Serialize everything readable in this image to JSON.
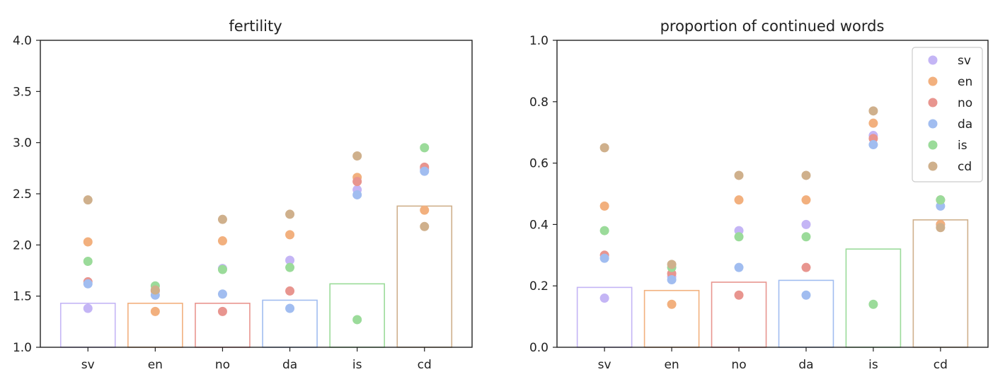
{
  "palette": {
    "sv": "#c4b5f5",
    "en": "#f2b07e",
    "no": "#e8958f",
    "da": "#a1bdf0",
    "is": "#9bdb9a",
    "cd": "#cfb08c"
  },
  "chart_data": [
    {
      "type": "bar",
      "title": "fertility",
      "categories": [
        "sv",
        "en",
        "no",
        "da",
        "is",
        "cd"
      ],
      "ylim": [
        1.0,
        4.0
      ],
      "yticks": [
        "1.0",
        "1.5",
        "2.0",
        "2.5",
        "3.0",
        "3.5",
        "4.0"
      ],
      "bars": [
        1.43,
        1.43,
        1.43,
        1.46,
        1.62,
        2.38
      ],
      "series": [
        {
          "name": "sv",
          "values": [
            1.38,
            1.56,
            1.77,
            1.85,
            2.54,
            2.74
          ]
        },
        {
          "name": "en",
          "values": [
            2.03,
            1.35,
            2.04,
            2.1,
            2.66,
            2.34
          ]
        },
        {
          "name": "no",
          "values": [
            1.64,
            1.55,
            1.35,
            1.55,
            2.62,
            2.76
          ]
        },
        {
          "name": "da",
          "values": [
            1.62,
            1.51,
            1.52,
            1.38,
            2.49,
            2.72
          ]
        },
        {
          "name": "is",
          "values": [
            1.84,
            1.6,
            1.76,
            1.78,
            1.27,
            2.95
          ]
        },
        {
          "name": "cd",
          "values": [
            2.44,
            1.56,
            2.25,
            2.3,
            2.87,
            2.18
          ]
        }
      ]
    },
    {
      "type": "bar",
      "title": "proportion of continued words",
      "categories": [
        "sv",
        "en",
        "no",
        "da",
        "is",
        "cd"
      ],
      "ylim": [
        0.0,
        1.0
      ],
      "yticks": [
        "0.0",
        "0.2",
        "0.4",
        "0.6",
        "0.8",
        "1.0"
      ],
      "bars": [
        0.195,
        0.185,
        0.212,
        0.218,
        0.32,
        0.415
      ],
      "legend": {
        "location": "top-right",
        "entries": [
          "sv",
          "en",
          "no",
          "da",
          "is",
          "cd"
        ]
      },
      "series": [
        {
          "name": "sv",
          "values": [
            0.16,
            0.23,
            0.38,
            0.4,
            0.69,
            0.4
          ]
        },
        {
          "name": "en",
          "values": [
            0.46,
            0.14,
            0.48,
            0.48,
            0.73,
            0.4
          ]
        },
        {
          "name": "no",
          "values": [
            0.3,
            0.24,
            0.17,
            0.26,
            0.68,
            0.48
          ]
        },
        {
          "name": "da",
          "values": [
            0.29,
            0.22,
            0.26,
            0.17,
            0.66,
            0.46
          ]
        },
        {
          "name": "is",
          "values": [
            0.38,
            0.26,
            0.36,
            0.36,
            0.14,
            0.48
          ]
        },
        {
          "name": "cd",
          "values": [
            0.65,
            0.27,
            0.56,
            0.56,
            0.77,
            0.39
          ]
        }
      ]
    }
  ]
}
